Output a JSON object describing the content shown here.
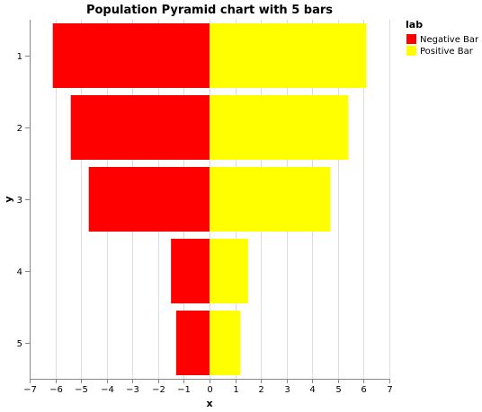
{
  "chart_data": {
    "type": "bar",
    "orientation": "horizontal",
    "title": "Population Pyramid chart with 5 bars",
    "xlabel": "x",
    "ylabel": "y",
    "xlim": [
      -7,
      7
    ],
    "xticks": [
      -7,
      -6,
      -5,
      -4,
      -3,
      -2,
      -1,
      0,
      1,
      2,
      3,
      4,
      5,
      6,
      7
    ],
    "categories": [
      "1",
      "2",
      "3",
      "4",
      "5"
    ],
    "grid": true,
    "legend_title": "lab",
    "legend_position": "top-right",
    "series": [
      {
        "name": "Negative Bar",
        "color": "#ff0000",
        "values": [
          -6.1,
          -5.4,
          -4.7,
          -1.5,
          -1.3
        ]
      },
      {
        "name": "Positive Bar",
        "color": "#ffff00",
        "values": [
          6.1,
          5.4,
          4.7,
          1.5,
          1.2
        ]
      }
    ]
  }
}
